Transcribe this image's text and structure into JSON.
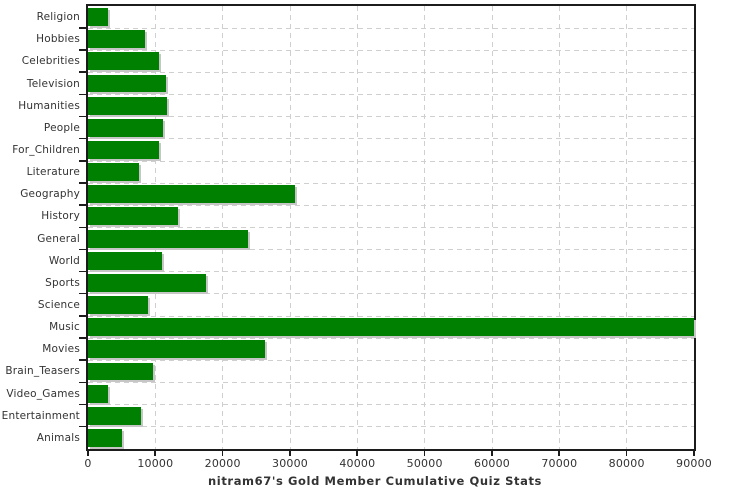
{
  "chart_data": {
    "type": "bar",
    "orientation": "horizontal",
    "title": "nitram67's Gold Member Cumulative Quiz Stats",
    "categories": [
      "Religion",
      "Hobbies",
      "Celebrities",
      "Television",
      "Humanities",
      "People",
      "For_Children",
      "Literature",
      "Geography",
      "History",
      "General",
      "World",
      "Sports",
      "Science",
      "Music",
      "Movies",
      "Brain_Teasers",
      "Video_Games",
      "Entertainment",
      "Animals"
    ],
    "values": [
      3000,
      8400,
      10600,
      11600,
      11800,
      11100,
      10600,
      7600,
      30800,
      13300,
      23700,
      11000,
      17500,
      8900,
      90000,
      26300,
      9700,
      2900,
      7800,
      5100
    ],
    "xlabel": "",
    "ylabel": "",
    "xlim": [
      0,
      90000
    ],
    "x_ticks": [
      0,
      10000,
      20000,
      30000,
      40000,
      50000,
      60000,
      70000,
      80000,
      90000
    ],
    "x_tick_labels": [
      "0",
      "10000",
      "20000",
      "30000",
      "40000",
      "50000",
      "60000",
      "70000",
      "80000",
      "90000"
    ],
    "grid": "dashed",
    "legend_position": "none",
    "colors": {
      "bar": "#008000",
      "bar_shadow": "#c6c6c6",
      "grid": "#cfcfcf",
      "axis": "#1c1c1c",
      "text": "#333333",
      "background": "#ffffff"
    }
  }
}
